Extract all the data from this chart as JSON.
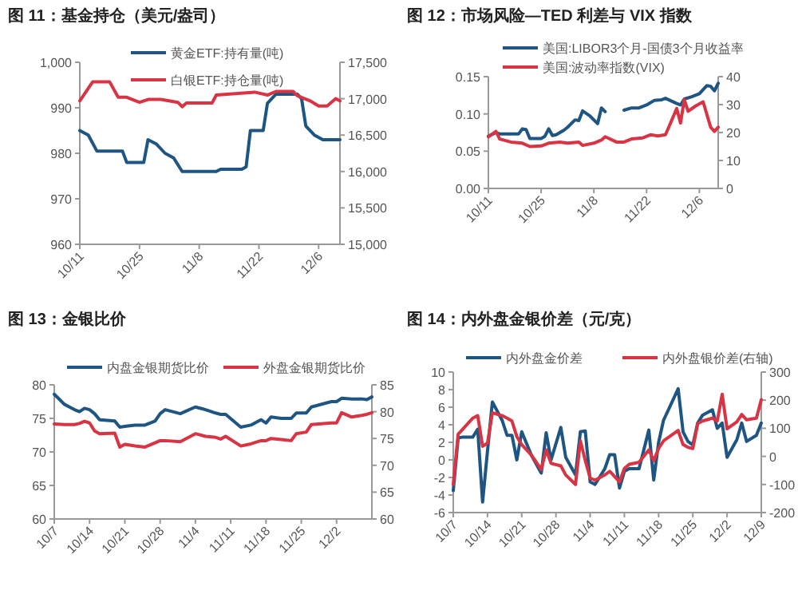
{
  "chart_data": [
    {
      "type": "line",
      "title": "图 11：基金持仓（美元/盎司）",
      "legend": "top",
      "xlim": [
        "--10-11",
        "--12-11"
      ],
      "xticks": [
        {
          "value": "--10-11",
          "label": "10/11"
        },
        {
          "value": "--10-25",
          "label": "10/25"
        },
        {
          "value": "--11-08",
          "label": "11/8"
        },
        {
          "value": "--11-22",
          "label": "11/22"
        },
        {
          "value": "--12-06",
          "label": "12/6"
        }
      ],
      "ylim": [
        960,
        1000
      ],
      "yticks": [
        960,
        970,
        980,
        990,
        {
          "value": 1000,
          "label": "1,000"
        }
      ],
      "y2lim": [
        15000,
        17500
      ],
      "y2ticks": [
        {
          "value": 15000,
          "label": "15,000"
        },
        {
          "value": 15500,
          "label": "15,500"
        },
        {
          "value": 16000,
          "label": "16,000"
        },
        {
          "value": 16500,
          "label": "16,500"
        },
        {
          "value": 17000,
          "label": "17,000"
        },
        {
          "value": 17500,
          "label": "17,500"
        }
      ],
      "series": [
        {
          "name": "黄金ETF:持有量(吨)",
          "color": "#1f5582",
          "x": [
            "--10-11",
            "--10-13",
            "--10-15",
            "--10-21",
            "--10-22",
            "--10-26",
            "--10-27",
            "--10-29",
            "--10-31",
            "--11-02",
            "--11-04",
            "--11-12",
            "--11-13",
            "--11-18",
            "--11-19",
            "--11-20",
            "--11-23",
            "--11-24",
            "--11-26",
            "--12-01",
            "--12-02",
            "--12-03",
            "--12-05",
            "--12-07",
            "--12-11"
          ],
          "values": [
            985,
            984,
            980.5,
            980.5,
            978,
            978,
            983,
            982,
            980,
            979,
            976,
            976,
            976.5,
            976.5,
            977,
            985,
            985,
            991,
            993,
            993,
            992,
            986,
            984,
            983,
            983
          ]
        },
        {
          "name": "白银ETF:持仓量(吨)",
          "color": "#d93444",
          "axis": "y2",
          "x": [
            "--10-11",
            "--10-14",
            "--10-18",
            "--10-20",
            "--10-22",
            "--10-25",
            "--10-27",
            "--10-30",
            "--11-03",
            "--11-04",
            "--11-05",
            "--11-11",
            "--11-12",
            "--11-21",
            "--11-24",
            "--11-26",
            "--11-30",
            "--12-01",
            "--12-04",
            "--12-06",
            "--12-08",
            "--12-10",
            "--12-11"
          ],
          "values": [
            16970,
            17230,
            17230,
            17020,
            17020,
            16950,
            16990,
            16990,
            16950,
            16890,
            16940,
            16940,
            17050,
            17090,
            17050,
            17100,
            17100,
            17040,
            16970,
            16900,
            16900,
            17000,
            16970
          ]
        }
      ]
    },
    {
      "type": "line",
      "title": "图 12：市场风险—TED 利差与 VIX 指数",
      "legend": "top",
      "xlim": [
        "--10-11",
        "--12-11"
      ],
      "xticks": [
        {
          "value": "--10-11",
          "label": "10/11"
        },
        {
          "value": "--10-25",
          "label": "10/25"
        },
        {
          "value": "--11-08",
          "label": "11/8"
        },
        {
          "value": "--11-22",
          "label": "11/22"
        },
        {
          "value": "--12-06",
          "label": "12/6"
        }
      ],
      "ylim": [
        0,
        0.15
      ],
      "yticks": [
        {
          "value": 0,
          "label": "0.00"
        },
        {
          "value": 0.05,
          "label": "0.05"
        },
        {
          "value": 0.1,
          "label": "0.10"
        },
        {
          "value": 0.15,
          "label": "0.15"
        }
      ],
      "y2lim": [
        0,
        40
      ],
      "y2ticks": [
        0,
        10,
        20,
        30,
        40
      ],
      "series": [
        {
          "name": "美国:LIBOR3个月-国债3个月收益率",
          "color": "#1f5582",
          "x": [
            "--10-11",
            "--10-13",
            "--10-14",
            "--10-19",
            "--10-20",
            "--10-21",
            "--10-22",
            "--10-25",
            "--10-26",
            "--10-27",
            "--10-28",
            "--10-29",
            "--10-31",
            "--11-01",
            "--11-03",
            "--11-04",
            "--11-05",
            "--11-07",
            "--11-09",
            "--11-10",
            "--11-11",
            "--11-13",
            "--11-16",
            "--11-18",
            "--11-20",
            "--11-22",
            "--11-24",
            "--11-26",
            "--11-27",
            "--11-30",
            "--12-01",
            "--12-02",
            "--12-04",
            "--12-06",
            "--12-08",
            "--12-09",
            "--12-10",
            "--12-11"
          ],
          "values": [
            0.07,
            0.075,
            0.073,
            0.073,
            0.08,
            0.079,
            0.067,
            0.067,
            0.07,
            0.08,
            0.071,
            0.072,
            0.078,
            0.082,
            0.092,
            0.091,
            0.104,
            0.097,
            0.087,
            0.108,
            0.103,
            null,
            0.105,
            0.108,
            0.108,
            0.112,
            0.118,
            0.119,
            0.121,
            0.114,
            0.112,
            0.12,
            0.123,
            0.127,
            0.138,
            0.137,
            0.131,
            0.141
          ]
        },
        {
          "name": "美国:波动率指数(VIX)",
          "color": "#d93444",
          "axis": "y2",
          "x": [
            "--10-11",
            "--10-13",
            "--10-14",
            "--10-17",
            "--10-20",
            "--10-22",
            "--10-25",
            "--10-27",
            "--10-30",
            "--11-01",
            "--11-04",
            "--11-05",
            "--11-08",
            "--11-10",
            "--11-11",
            "--11-14",
            "--11-16",
            "--11-18",
            "--11-21",
            "--11-23",
            "--11-25",
            "--11-27",
            "--11-28",
            "--11-30",
            "--12-01",
            "--12-02",
            "--12-03",
            "--12-05",
            "--12-07",
            "--12-09",
            "--12-10",
            "--12-11"
          ],
          "values": [
            18.5,
            20.4,
            17.7,
            16.6,
            16.2,
            15,
            15.2,
            16.2,
            16.6,
            16.2,
            16.6,
            15.4,
            16.2,
            17.3,
            18.5,
            16.6,
            16.6,
            17.7,
            18.1,
            19.2,
            18.8,
            19.2,
            22.3,
            28.6,
            23.4,
            31.8,
            27.6,
            29.5,
            31,
            21.9,
            20.4,
            21.9
          ]
        }
      ]
    },
    {
      "type": "line",
      "title": "图 13：金银比价",
      "legend": "top",
      "xlim": [
        "--10-07",
        "--12-09"
      ],
      "xticks": [
        {
          "value": "--10-07",
          "label": "10/7"
        },
        {
          "value": "--10-14",
          "label": "10/14"
        },
        {
          "value": "--10-21",
          "label": "10/21"
        },
        {
          "value": "--10-28",
          "label": "10/28"
        },
        {
          "value": "--11-04",
          "label": "11/4"
        },
        {
          "value": "--11-11",
          "label": "11/11"
        },
        {
          "value": "--11-18",
          "label": "11/18"
        },
        {
          "value": "--11-25",
          "label": "11/25"
        },
        {
          "value": "--12-02",
          "label": "12/2"
        }
      ],
      "ylim": [
        60,
        80
      ],
      "yticks": [
        60,
        65,
        70,
        75,
        80
      ],
      "y2lim": [
        60,
        85
      ],
      "y2ticks": [
        60,
        65,
        70,
        75,
        80,
        85
      ],
      "series": [
        {
          "name": "内盘金银期货比价",
          "color": "#1f5582",
          "x": [
            "--10-07",
            "--10-09",
            "--10-11",
            "--10-12",
            "--10-13",
            "--10-14",
            "--10-15",
            "--10-16",
            "--10-19",
            "--10-20",
            "--10-21",
            "--10-23",
            "--10-25",
            "--10-27",
            "--10-28",
            "--10-29",
            "--11-01",
            "--11-04",
            "--11-06",
            "--11-08",
            "--11-09",
            "--11-10",
            "--11-13",
            "--11-15",
            "--11-17",
            "--11-18",
            "--11-19",
            "--11-21",
            "--11-23",
            "--11-24",
            "--11-26",
            "--11-27",
            "--12-01",
            "--12-02",
            "--12-03",
            "--12-05",
            "--12-07",
            "--12-08",
            "--12-09"
          ],
          "values": [
            78.6,
            77.1,
            76.3,
            76,
            76.5,
            76.3,
            75.7,
            74.8,
            74.6,
            73.7,
            73.8,
            74,
            74,
            74.6,
            75.7,
            76.3,
            75.7,
            76.7,
            76.3,
            75.8,
            75.6,
            75.6,
            73.7,
            74,
            74.8,
            74.3,
            75.2,
            75,
            75,
            75.8,
            75.8,
            76.7,
            77.5,
            77.5,
            78,
            77.9,
            77.9,
            77.8,
            78.2
          ]
        },
        {
          "name": "外盘金银期货比价",
          "color": "#d93444",
          "axis": "y2",
          "x": [
            "--10-07",
            "--10-09",
            "--10-11",
            "--10-12",
            "--10-13",
            "--10-14",
            "--10-15",
            "--10-16",
            "--10-19",
            "--10-20",
            "--10-21",
            "--10-23",
            "--10-25",
            "--10-27",
            "--10-28",
            "--10-29",
            "--11-01",
            "--11-04",
            "--11-06",
            "--11-08",
            "--11-09",
            "--11-10",
            "--11-13",
            "--11-15",
            "--11-17",
            "--11-18",
            "--11-19",
            "--11-21",
            "--11-23",
            "--11-24",
            "--11-26",
            "--11-27",
            "--12-01",
            "--12-02",
            "--12-03",
            "--12-05",
            "--12-07",
            "--12-08",
            "--12-09"
          ],
          "values": [
            77.7,
            77.6,
            77.6,
            77.8,
            78.2,
            77.9,
            76.4,
            75.9,
            76,
            73.4,
            73.9,
            73.6,
            73.4,
            74.2,
            74.6,
            74.6,
            74.4,
            75.9,
            75.4,
            75.2,
            74.9,
            75.4,
            73.6,
            74,
            74.6,
            74.6,
            75,
            74.8,
            74.6,
            75.9,
            76.2,
            77.6,
            77.9,
            77.9,
            79.8,
            79,
            79.3,
            79.5,
            79.8
          ]
        }
      ]
    },
    {
      "type": "line",
      "title": "图 14：内外盘金银价差（元/克）",
      "legend": "top",
      "xlim": [
        "--10-07",
        "--12-09"
      ],
      "xticks": [
        {
          "value": "--10-07",
          "label": "10/7"
        },
        {
          "value": "--10-14",
          "label": "10/14"
        },
        {
          "value": "--10-21",
          "label": "10/21"
        },
        {
          "value": "--10-28",
          "label": "10/28"
        },
        {
          "value": "--11-04",
          "label": "11/4"
        },
        {
          "value": "--11-11",
          "label": "11/11"
        },
        {
          "value": "--11-18",
          "label": "11/18"
        },
        {
          "value": "--11-25",
          "label": "11/25"
        },
        {
          "value": "--12-02",
          "label": "12/2"
        },
        {
          "value": "--12-09",
          "label": "12/9"
        }
      ],
      "ylim": [
        -6,
        10
      ],
      "yticks": [
        -6,
        -4,
        -2,
        0,
        2,
        4,
        6,
        8,
        10
      ],
      "y2lim": [
        -200,
        300
      ],
      "y2ticks": [
        -200,
        -100,
        0,
        100,
        200,
        300
      ],
      "series": [
        {
          "name": "内外盘金价差",
          "color": "#1f5582",
          "x": [
            "--10-07",
            "--10-08",
            "--10-09",
            "--10-11",
            "--10-12",
            "--10-13",
            "--10-14",
            "--10-15",
            "--10-17",
            "--10-18",
            "--10-19",
            "--10-20",
            "--10-21",
            "--10-23",
            "--10-25",
            "--10-26",
            "--10-27",
            "--10-29",
            "--10-30",
            "--11-01",
            "--11-02",
            "--11-03",
            "--11-04",
            "--11-05",
            "--11-07",
            "--11-08",
            "--11-09",
            "--11-10",
            "--11-11",
            "--11-12",
            "--11-14",
            "--11-16",
            "--11-17",
            "--11-18",
            "--11-19",
            "--11-22",
            "--11-23",
            "--11-24",
            "--11-25",
            "--11-26",
            "--11-27",
            "--11-29",
            "--11-30",
            "--12-01",
            "--12-02",
            "--12-04",
            "--12-05",
            "--12-06",
            "--12-08",
            "--12-09"
          ],
          "values": [
            -3.5,
            2.5,
            2.6,
            2.6,
            3.5,
            -4.8,
            1,
            6.6,
            4.5,
            2.8,
            2.8,
            0,
            3.2,
            0.5,
            -1.5,
            3.1,
            0,
            3.7,
            0.3,
            -1.7,
            3.2,
            3.3,
            -2.5,
            -2.8,
            -1,
            0.6,
            0.6,
            -3.2,
            -1.3,
            -1,
            -1,
            3.4,
            -2.3,
            2,
            4.5,
            8.1,
            3.2,
            2.1,
            1.7,
            4.2,
            5.1,
            5.7,
            3.6,
            4.2,
            0.3,
            2.3,
            4.2,
            2.1,
            2.8,
            4.2
          ]
        },
        {
          "name": "内外盘银价差(右轴)",
          "color": "#d93444",
          "axis": "y2",
          "x": [
            "--10-07",
            "--10-08",
            "--10-09",
            "--10-11",
            "--10-12",
            "--10-13",
            "--10-14",
            "--10-15",
            "--10-17",
            "--10-18",
            "--10-19",
            "--10-20",
            "--10-21",
            "--10-23",
            "--10-25",
            "--10-26",
            "--10-27",
            "--10-29",
            "--10-30",
            "--11-01",
            "--11-02",
            "--11-03",
            "--11-04",
            "--11-05",
            "--11-07",
            "--11-08",
            "--11-09",
            "--11-10",
            "--11-11",
            "--11-12",
            "--11-14",
            "--11-16",
            "--11-17",
            "--11-18",
            "--11-19",
            "--11-22",
            "--11-23",
            "--11-24",
            "--11-25",
            "--11-26",
            "--11-27",
            "--11-29",
            "--11-30",
            "--12-01",
            "--12-02",
            "--12-04",
            "--12-05",
            "--12-06",
            "--12-08",
            "--12-09"
          ],
          "values": [
            -100,
            79,
            98,
            136,
            145,
            36,
            47,
            155,
            145,
            136,
            126,
            70,
            42,
            4,
            -47,
            23,
            -25,
            -34,
            -66,
            -100,
            55,
            -15,
            -77,
            -85,
            -66,
            -53,
            -72,
            -91,
            -43,
            -28,
            -21,
            23,
            -15,
            28,
            55,
            92,
            42,
            32,
            28,
            117,
            126,
            136,
            126,
            221,
            98,
            123,
            149,
            130,
            136,
            202
          ]
        }
      ]
    }
  ]
}
